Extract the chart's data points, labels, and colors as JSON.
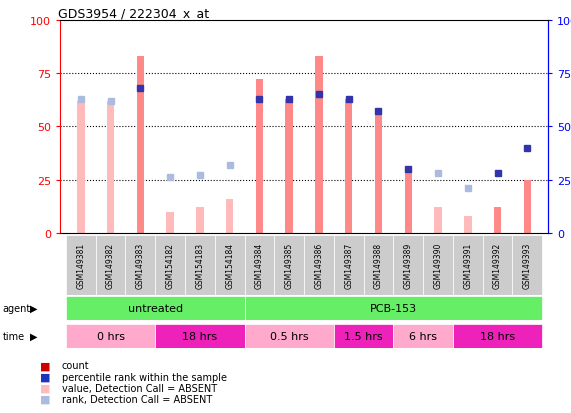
{
  "title": "GDS3954 / 222304_x_at",
  "samples": [
    "GSM149381",
    "GSM149382",
    "GSM149383",
    "GSM154182",
    "GSM154183",
    "GSM154184",
    "GSM149384",
    "GSM149385",
    "GSM149386",
    "GSM149387",
    "GSM149388",
    "GSM149389",
    "GSM149390",
    "GSM149391",
    "GSM149392",
    "GSM149393"
  ],
  "bar_values": [
    62,
    62,
    83,
    10,
    12,
    16,
    72,
    63,
    83,
    63,
    57,
    30,
    12,
    8,
    12,
    25
  ],
  "bar_absent": [
    true,
    true,
    false,
    true,
    true,
    true,
    false,
    false,
    false,
    false,
    false,
    false,
    true,
    true,
    false,
    false
  ],
  "rank_values": [
    63,
    62,
    68,
    26,
    27,
    32,
    63,
    63,
    65,
    63,
    57,
    30,
    28,
    21,
    28,
    40
  ],
  "rank_absent": [
    true,
    true,
    false,
    true,
    true,
    true,
    false,
    false,
    false,
    false,
    false,
    false,
    true,
    true,
    false,
    false
  ],
  "bar_color_present": "#FF8888",
  "bar_color_absent": "#FFBBBB",
  "dot_color_present": "#3333AA",
  "dot_color_absent": "#AABBDD",
  "yticks": [
    0,
    25,
    50,
    75,
    100
  ],
  "agent_groups": [
    {
      "label": "untreated",
      "start": 0,
      "end": 6
    },
    {
      "label": "PCB-153",
      "start": 6,
      "end": 16
    }
  ],
  "time_groups": [
    {
      "label": "0 hrs",
      "start": 0,
      "end": 3,
      "color": "#FFAACC"
    },
    {
      "label": "18 hrs",
      "start": 3,
      "end": 6,
      "color": "#EE22BB"
    },
    {
      "label": "0.5 hrs",
      "start": 6,
      "end": 9,
      "color": "#FFAACC"
    },
    {
      "label": "1.5 hrs",
      "start": 9,
      "end": 11,
      "color": "#EE22BB"
    },
    {
      "label": "6 hrs",
      "start": 11,
      "end": 13,
      "color": "#FFAACC"
    },
    {
      "label": "18 hrs",
      "start": 13,
      "end": 16,
      "color": "#EE22BB"
    }
  ],
  "agent_color": "#66EE66",
  "sample_box_color": "#CCCCCC",
  "bg_color": "#ffffff",
  "legend_items": [
    {
      "color": "#CC0000",
      "label": "count"
    },
    {
      "color": "#2233BB",
      "label": "percentile rank within the sample"
    },
    {
      "color": "#FFBBBB",
      "label": "value, Detection Call = ABSENT"
    },
    {
      "color": "#AABBDD",
      "label": "rank, Detection Call = ABSENT"
    }
  ]
}
